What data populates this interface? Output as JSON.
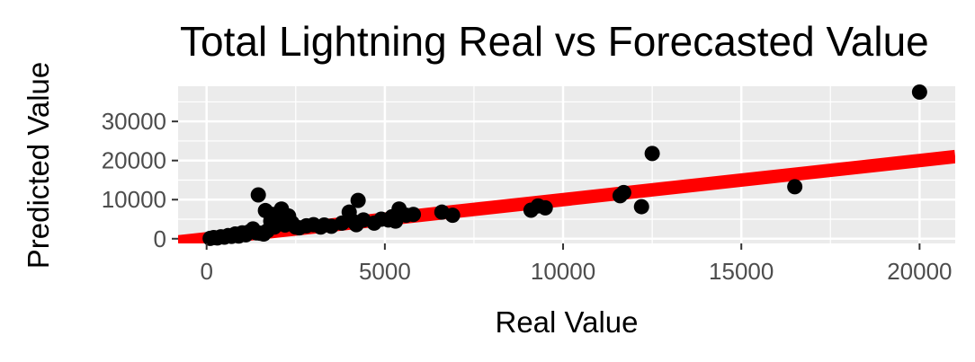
{
  "chart_data": {
    "type": "scatter",
    "title": "Total Lightning Real vs Forecasted Value",
    "xlabel": "Real Value",
    "ylabel": "Predicted Value",
    "xlim": [
      -800,
      21000
    ],
    "ylim": [
      -1200,
      39000
    ],
    "x_ticks": [
      0,
      5000,
      10000,
      15000,
      20000
    ],
    "y_ticks": [
      0,
      10000,
      20000,
      30000
    ],
    "x_tick_labels": [
      "0",
      "5000",
      "10000",
      "15000",
      "20000"
    ],
    "y_tick_labels": [
      "0",
      "10000",
      "20000",
      "30000"
    ],
    "grid": true,
    "legend": "none",
    "colors": {
      "points": "#000000",
      "fit_line": "#ff0000",
      "panel": "#ebebeb",
      "grid": "#ffffff"
    },
    "fit_line": {
      "intercept": 0,
      "slope": 1.0
    },
    "points": [
      {
        "x": 100,
        "y": 100
      },
      {
        "x": 200,
        "y": 300
      },
      {
        "x": 300,
        "y": 200
      },
      {
        "x": 400,
        "y": 500
      },
      {
        "x": 500,
        "y": 400
      },
      {
        "x": 600,
        "y": 800
      },
      {
        "x": 700,
        "y": 600
      },
      {
        "x": 800,
        "y": 1200
      },
      {
        "x": 900,
        "y": 700
      },
      {
        "x": 1000,
        "y": 1500
      },
      {
        "x": 1100,
        "y": 1000
      },
      {
        "x": 1200,
        "y": 1800
      },
      {
        "x": 1300,
        "y": 2500
      },
      {
        "x": 1400,
        "y": 1500
      },
      {
        "x": 1450,
        "y": 11200
      },
      {
        "x": 1500,
        "y": 1400
      },
      {
        "x": 1600,
        "y": 1200
      },
      {
        "x": 1650,
        "y": 7200
      },
      {
        "x": 1700,
        "y": 2000
      },
      {
        "x": 1800,
        "y": 4500
      },
      {
        "x": 1850,
        "y": 6200
      },
      {
        "x": 1900,
        "y": 3000
      },
      {
        "x": 2000,
        "y": 5500
      },
      {
        "x": 2100,
        "y": 7600
      },
      {
        "x": 2200,
        "y": 3500
      },
      {
        "x": 2300,
        "y": 5800
      },
      {
        "x": 2400,
        "y": 4000
      },
      {
        "x": 2500,
        "y": 3000
      },
      {
        "x": 2600,
        "y": 2800
      },
      {
        "x": 2800,
        "y": 3300
      },
      {
        "x": 3000,
        "y": 3600
      },
      {
        "x": 3200,
        "y": 3000
      },
      {
        "x": 3300,
        "y": 3500
      },
      {
        "x": 3500,
        "y": 3200
      },
      {
        "x": 3800,
        "y": 4000
      },
      {
        "x": 4000,
        "y": 6800
      },
      {
        "x": 4100,
        "y": 4500
      },
      {
        "x": 4200,
        "y": 3600
      },
      {
        "x": 4250,
        "y": 9800
      },
      {
        "x": 4400,
        "y": 4800
      },
      {
        "x": 4700,
        "y": 4000
      },
      {
        "x": 4900,
        "y": 5000
      },
      {
        "x": 5100,
        "y": 4800
      },
      {
        "x": 5200,
        "y": 5600
      },
      {
        "x": 5300,
        "y": 4500
      },
      {
        "x": 5400,
        "y": 7600
      },
      {
        "x": 5600,
        "y": 6000
      },
      {
        "x": 5800,
        "y": 6200
      },
      {
        "x": 6600,
        "y": 6800
      },
      {
        "x": 6900,
        "y": 6000
      },
      {
        "x": 9100,
        "y": 7300
      },
      {
        "x": 9300,
        "y": 8400
      },
      {
        "x": 9500,
        "y": 7900
      },
      {
        "x": 11600,
        "y": 11000
      },
      {
        "x": 11700,
        "y": 11800
      },
      {
        "x": 12200,
        "y": 8200
      },
      {
        "x": 12500,
        "y": 21800
      },
      {
        "x": 16500,
        "y": 13300
      },
      {
        "x": 20000,
        "y": 37500
      }
    ]
  }
}
